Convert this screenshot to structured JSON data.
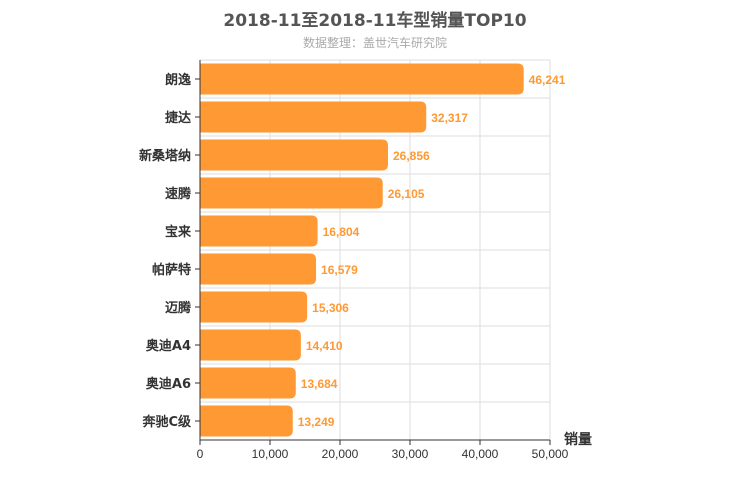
{
  "chart_data": {
    "type": "bar",
    "orientation": "horizontal",
    "title": "2018-11至2018-11车型销量TOP10",
    "subtitle": "数据整理：盖世汽车研究院",
    "xlabel": "销量",
    "ylabel": "",
    "categories": [
      "朗逸",
      "捷达",
      "新桑塔纳",
      "速腾",
      "宝来",
      "帕萨特",
      "迈腾",
      "奥迪A4",
      "奥迪A6",
      "奔驰C级"
    ],
    "values": [
      46241,
      32317,
      26856,
      26105,
      16804,
      16579,
      15306,
      14410,
      13684,
      13249
    ],
    "value_labels": [
      "46,241",
      "32,317",
      "26,856",
      "26,105",
      "16,804",
      "16,579",
      "15,306",
      "14,410",
      "13,684",
      "13,249"
    ],
    "xlim": [
      0,
      50000
    ],
    "xticks": [
      "0",
      "10,000",
      "20,000",
      "30,000",
      "40,000",
      "50,000"
    ],
    "grid": true,
    "colors": {
      "bar": "#ff9933",
      "label": "#ff9933",
      "grid": "#dddddd",
      "axis": "#333333"
    }
  }
}
